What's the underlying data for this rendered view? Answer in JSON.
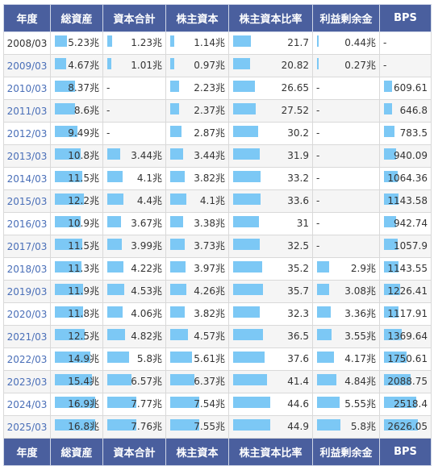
{
  "colors": {
    "header_bg": "#4a5f9e",
    "header_text": "#ffffff",
    "bar": "#7cc8f5",
    "link": "#4a6fb8"
  },
  "headers": [
    "年度",
    "総資産",
    "資本合計",
    "株主資本",
    "株主資本比率",
    "利益剰余金",
    "BPS"
  ],
  "rows": [
    {
      "year": "2008/03",
      "link": false,
      "total_assets": "5.23兆",
      "total_capital": "1.23兆",
      "shareholders_equity": "1.14兆",
      "equity_ratio": "21.7",
      "retained_earnings": "0.44兆",
      "bps": "-"
    },
    {
      "year": "2009/03",
      "link": true,
      "total_assets": "4.67兆",
      "total_capital": "1.01兆",
      "shareholders_equity": "0.97兆",
      "equity_ratio": "20.82",
      "retained_earnings": "0.27兆",
      "bps": "-"
    },
    {
      "year": "2010/03",
      "link": true,
      "total_assets": "8.37兆",
      "total_capital": "-",
      "shareholders_equity": "2.23兆",
      "equity_ratio": "26.65",
      "retained_earnings": "-",
      "bps": "609.61"
    },
    {
      "year": "2011/03",
      "link": true,
      "total_assets": "8.6兆",
      "total_capital": "-",
      "shareholders_equity": "2.37兆",
      "equity_ratio": "27.52",
      "retained_earnings": "-",
      "bps": "646.8"
    },
    {
      "year": "2012/03",
      "link": true,
      "total_assets": "9.49兆",
      "total_capital": "-",
      "shareholders_equity": "2.87兆",
      "equity_ratio": "30.2",
      "retained_earnings": "-",
      "bps": "783.5"
    },
    {
      "year": "2013/03",
      "link": true,
      "total_assets": "10.8兆",
      "total_capital": "3.44兆",
      "shareholders_equity": "3.44兆",
      "equity_ratio": "31.9",
      "retained_earnings": "-",
      "bps": "940.09"
    },
    {
      "year": "2014/03",
      "link": true,
      "total_assets": "11.5兆",
      "total_capital": "4.1兆",
      "shareholders_equity": "3.82兆",
      "equity_ratio": "33.2",
      "retained_earnings": "-",
      "bps": "1064.36"
    },
    {
      "year": "2015/03",
      "link": true,
      "total_assets": "12.2兆",
      "total_capital": "4.4兆",
      "shareholders_equity": "4.1兆",
      "equity_ratio": "33.6",
      "retained_earnings": "-",
      "bps": "1143.58"
    },
    {
      "year": "2016/03",
      "link": true,
      "total_assets": "10.9兆",
      "total_capital": "3.67兆",
      "shareholders_equity": "3.38兆",
      "equity_ratio": "31",
      "retained_earnings": "-",
      "bps": "942.74"
    },
    {
      "year": "2017/03",
      "link": true,
      "total_assets": "11.5兆",
      "total_capital": "3.99兆",
      "shareholders_equity": "3.73兆",
      "equity_ratio": "32.5",
      "retained_earnings": "-",
      "bps": "1057.9"
    },
    {
      "year": "2018/03",
      "link": true,
      "total_assets": "11.3兆",
      "total_capital": "4.22兆",
      "shareholders_equity": "3.97兆",
      "equity_ratio": "35.2",
      "retained_earnings": "2.9兆",
      "bps": "1143.55"
    },
    {
      "year": "2019/03",
      "link": true,
      "total_assets": "11.9兆",
      "total_capital": "4.53兆",
      "shareholders_equity": "4.26兆",
      "equity_ratio": "35.7",
      "retained_earnings": "3.08兆",
      "bps": "1226.41"
    },
    {
      "year": "2020/03",
      "link": true,
      "total_assets": "11.8兆",
      "total_capital": "4.06兆",
      "shareholders_equity": "3.82兆",
      "equity_ratio": "32.3",
      "retained_earnings": "3.36兆",
      "bps": "1117.91"
    },
    {
      "year": "2021/03",
      "link": true,
      "total_assets": "12.5兆",
      "total_capital": "4.82兆",
      "shareholders_equity": "4.57兆",
      "equity_ratio": "36.5",
      "retained_earnings": "3.55兆",
      "bps": "1369.64"
    },
    {
      "year": "2022/03",
      "link": true,
      "total_assets": "14.9兆",
      "total_capital": "5.8兆",
      "shareholders_equity": "5.61兆",
      "equity_ratio": "37.6",
      "retained_earnings": "4.17兆",
      "bps": "1750.61"
    },
    {
      "year": "2023/03",
      "link": true,
      "total_assets": "15.4兆",
      "total_capital": "6.57兆",
      "shareholders_equity": "6.37兆",
      "equity_ratio": "41.4",
      "retained_earnings": "4.84兆",
      "bps": "2088.75"
    },
    {
      "year": "2024/03",
      "link": true,
      "total_assets": "16.9兆",
      "total_capital": "7.77兆",
      "shareholders_equity": "7.54兆",
      "equity_ratio": "44.6",
      "retained_earnings": "5.55兆",
      "bps": "2518.4"
    },
    {
      "year": "2025/03",
      "link": true,
      "total_assets": "16.8兆",
      "total_capital": "7.76兆",
      "shareholders_equity": "7.55兆",
      "equity_ratio": "44.9",
      "retained_earnings": "5.8兆",
      "bps": "2626.05"
    }
  ]
}
